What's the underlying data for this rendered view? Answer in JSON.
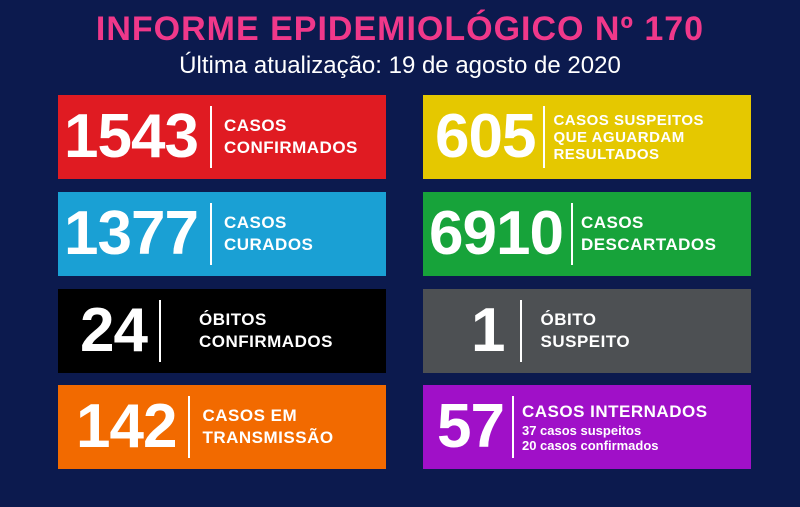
{
  "header": {
    "title": "INFORME EPIDEMIOLÓGICO Nº 170",
    "subtitle": "Última atualização: 19 de agosto de 2020"
  },
  "cards": [
    {
      "value": "1543",
      "line1": "CASOS",
      "line2": "CONFIRMADOS",
      "color": "#e01b22"
    },
    {
      "value": "605",
      "line1": "CASOS SUSPEITOS",
      "line2": "QUE AGUARDAM",
      "line3": "RESULTADOS",
      "color": "#e5c800"
    },
    {
      "value": "1377",
      "line1": "CASOS",
      "line2": "CURADOS",
      "color": "#1aa0d4"
    },
    {
      "value": "6910",
      "line1": "CASOS",
      "line2": "DESCARTADOS",
      "color": "#17a33a"
    },
    {
      "value": "24",
      "line1": "ÓBITOS",
      "line2": "CONFIRMADOS",
      "color": "#000000"
    },
    {
      "value": "1",
      "line1": "ÓBITO",
      "line2": "SUSPEITO",
      "color": "#4d5053"
    },
    {
      "value": "142",
      "line1": "CASOS EM",
      "line2": "TRANSMISSÃO",
      "color": "#f26a00"
    },
    {
      "value": "57",
      "line1": "CASOS INTERNADOS",
      "sub1": "37 casos suspeitos",
      "sub2": "20 casos confirmados",
      "color": "#a010c8"
    }
  ]
}
